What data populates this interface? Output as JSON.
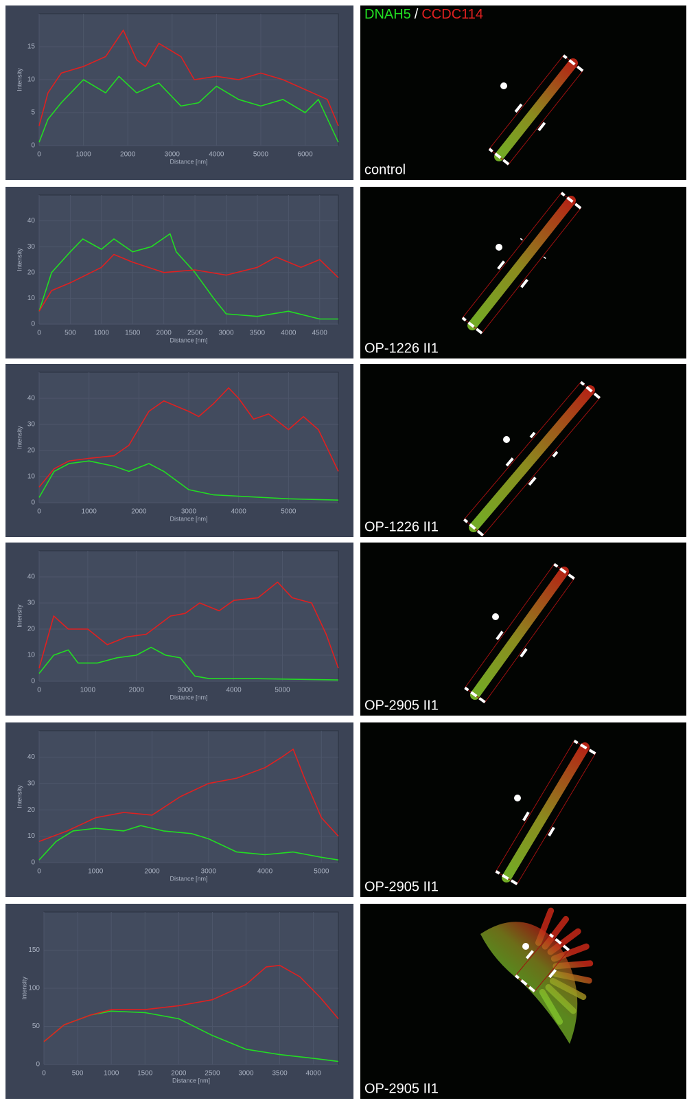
{
  "chart_data": [
    {
      "type": "line",
      "x_label": "Distance [nm]",
      "y_label": "Intensity",
      "caption": "control",
      "legend_separator": "/",
      "xlim": [
        0,
        6750
      ],
      "ylim": [
        0,
        20
      ],
      "xticks": [
        0,
        1000,
        2000,
        3000,
        4000,
        5000,
        6000
      ],
      "yticks": [
        0,
        5,
        10,
        15
      ],
      "grid": true,
      "series": [
        {
          "name": "DNAH5",
          "color": "#22dd22",
          "x": [
            0,
            200,
            500,
            1000,
            1500,
            1800,
            2200,
            2700,
            3200,
            3600,
            4000,
            4500,
            5000,
            5500,
            6000,
            6300,
            6750
          ],
          "values": [
            0.5,
            4,
            6.5,
            10,
            8,
            10.5,
            8,
            9.5,
            6,
            6.5,
            9,
            7,
            6,
            7,
            5,
            7,
            0.5
          ]
        },
        {
          "name": "CCDC114",
          "color": "#e02020",
          "x": [
            0,
            200,
            500,
            1000,
            1500,
            1900,
            2200,
            2400,
            2700,
            3200,
            3500,
            4000,
            4500,
            5000,
            5500,
            6000,
            6500,
            6750
          ],
          "values": [
            3,
            8,
            11,
            12,
            13.5,
            17.5,
            13,
            12,
            15.5,
            13.5,
            10,
            10.5,
            10,
            11,
            10,
            8.5,
            7,
            3
          ]
        }
      ]
    },
    {
      "type": "line",
      "x_label": "Distance [nm]",
      "y_label": "Intensity",
      "caption": "OP-1226 II1",
      "xlim": [
        0,
        4800
      ],
      "ylim": [
        0,
        50
      ],
      "xticks": [
        0,
        500,
        1000,
        1500,
        2000,
        2500,
        3000,
        3500,
        4000,
        4500
      ],
      "yticks": [
        0,
        10,
        20,
        30,
        40
      ],
      "grid": true,
      "series": [
        {
          "name": "DNAH5",
          "color": "#22dd22",
          "x": [
            0,
            200,
            500,
            700,
            1000,
            1200,
            1500,
            1800,
            2100,
            2200,
            2500,
            2800,
            3000,
            3500,
            4000,
            4500,
            4800
          ],
          "values": [
            5,
            20,
            28,
            33,
            29,
            33,
            28,
            30,
            35,
            28,
            20,
            10,
            4,
            3,
            5,
            2,
            2
          ]
        },
        {
          "name": "CCDC114",
          "color": "#e02020",
          "x": [
            0,
            200,
            500,
            1000,
            1200,
            1500,
            2000,
            2500,
            3000,
            3500,
            3800,
            4200,
            4500,
            4800
          ],
          "values": [
            5,
            13,
            16,
            22,
            27,
            24,
            20,
            21,
            19,
            22,
            26,
            22,
            25,
            18
          ]
        }
      ]
    },
    {
      "type": "line",
      "x_label": "Distance [nm]",
      "y_label": "Intensity",
      "caption": "OP-1226 II1",
      "xlim": [
        0,
        6000
      ],
      "ylim": [
        0,
        50
      ],
      "xticks": [
        0,
        1000,
        2000,
        3000,
        4000,
        5000
      ],
      "yticks": [
        0,
        10,
        20,
        30,
        40
      ],
      "grid": true,
      "series": [
        {
          "name": "DNAH5",
          "color": "#22dd22",
          "x": [
            0,
            300,
            600,
            1000,
            1500,
            1800,
            2200,
            2500,
            3000,
            3500,
            4000,
            5000,
            6000
          ],
          "values": [
            2,
            12,
            15,
            16,
            14,
            12,
            15,
            12,
            5,
            3,
            2.5,
            1.5,
            1
          ]
        },
        {
          "name": "CCDC114",
          "color": "#e02020",
          "x": [
            0,
            300,
            600,
            1000,
            1500,
            1800,
            2200,
            2500,
            3000,
            3200,
            3500,
            3800,
            4000,
            4300,
            4600,
            5000,
            5300,
            5600,
            6000
          ],
          "values": [
            6,
            13,
            16,
            17,
            18,
            22,
            35,
            39,
            35,
            33,
            38,
            44,
            40,
            32,
            34,
            28,
            33,
            28,
            12
          ]
        }
      ]
    },
    {
      "type": "line",
      "x_label": "Distance [nm]",
      "y_label": "Intensity",
      "caption": "OP-2905 II1",
      "xlim": [
        0,
        6150
      ],
      "ylim": [
        0,
        50
      ],
      "xticks": [
        0,
        1000,
        2000,
        3000,
        4000,
        5000
      ],
      "yticks": [
        0,
        10,
        20,
        30,
        40
      ],
      "grid": true,
      "series": [
        {
          "name": "DNAH5",
          "color": "#22dd22",
          "x": [
            0,
            300,
            600,
            800,
            1200,
            1600,
            2000,
            2300,
            2600,
            2900,
            3200,
            3500,
            4500,
            6150
          ],
          "values": [
            3,
            10,
            12,
            7,
            7,
            9,
            10,
            13,
            10,
            9,
            2,
            1,
            1,
            0.5
          ]
        },
        {
          "name": "CCDC114",
          "color": "#e02020",
          "x": [
            0,
            300,
            600,
            1000,
            1400,
            1800,
            2200,
            2700,
            3000,
            3300,
            3700,
            4000,
            4500,
            4900,
            5200,
            5600,
            5900,
            6150
          ],
          "values": [
            5,
            25,
            20,
            20,
            14,
            17,
            18,
            25,
            26,
            30,
            27,
            31,
            32,
            38,
            32,
            30,
            18,
            5
          ]
        }
      ]
    },
    {
      "type": "line",
      "x_label": "Distance [nm]",
      "y_label": "Intensity",
      "caption": "OP-2905 II1",
      "xlim": [
        0,
        5300
      ],
      "ylim": [
        0,
        50
      ],
      "xticks": [
        0,
        1000,
        2000,
        3000,
        4000,
        5000
      ],
      "yticks": [
        0,
        10,
        20,
        30,
        40
      ],
      "grid": true,
      "series": [
        {
          "name": "DNAH5",
          "color": "#22dd22",
          "x": [
            0,
            300,
            600,
            1000,
            1500,
            1800,
            2200,
            2700,
            3000,
            3500,
            4000,
            4500,
            5000,
            5300
          ],
          "values": [
            1,
            8,
            12,
            13,
            12,
            14,
            12,
            11,
            9,
            4,
            3,
            4,
            2,
            1
          ]
        },
        {
          "name": "CCDC114",
          "color": "#e02020",
          "x": [
            0,
            500,
            1000,
            1500,
            2000,
            2500,
            3000,
            3500,
            4000,
            4300,
            4500,
            4700,
            5000,
            5300
          ],
          "values": [
            8,
            12,
            17,
            19,
            18,
            25,
            30,
            32,
            36,
            40,
            43,
            32,
            17,
            10
          ]
        }
      ]
    },
    {
      "type": "line",
      "x_label": "Distance [nm]",
      "y_label": "Intensity",
      "caption": "OP-2905 II1",
      "xlim": [
        0,
        4370
      ],
      "ylim": [
        0,
        200
      ],
      "xticks": [
        0,
        500,
        1000,
        1500,
        2000,
        2500,
        3000,
        3500,
        4000
      ],
      "yticks": [
        0,
        50,
        100,
        150
      ],
      "grid": true,
      "series": [
        {
          "name": "DNAH5",
          "color": "#22dd22",
          "x": [
            0,
            300,
            700,
            1000,
            1500,
            2000,
            2500,
            3000,
            3500,
            4000,
            4370
          ],
          "values": [
            30,
            52,
            65,
            70,
            68,
            60,
            38,
            20,
            13,
            8,
            4
          ]
        },
        {
          "name": "CCDC114",
          "color": "#e02020",
          "x": [
            0,
            300,
            700,
            1000,
            1500,
            2000,
            2500,
            3000,
            3300,
            3500,
            3800,
            4100,
            4370
          ],
          "values": [
            30,
            52,
            65,
            72,
            72,
            77,
            85,
            105,
            128,
            130,
            115,
            88,
            60
          ]
        }
      ]
    }
  ]
}
